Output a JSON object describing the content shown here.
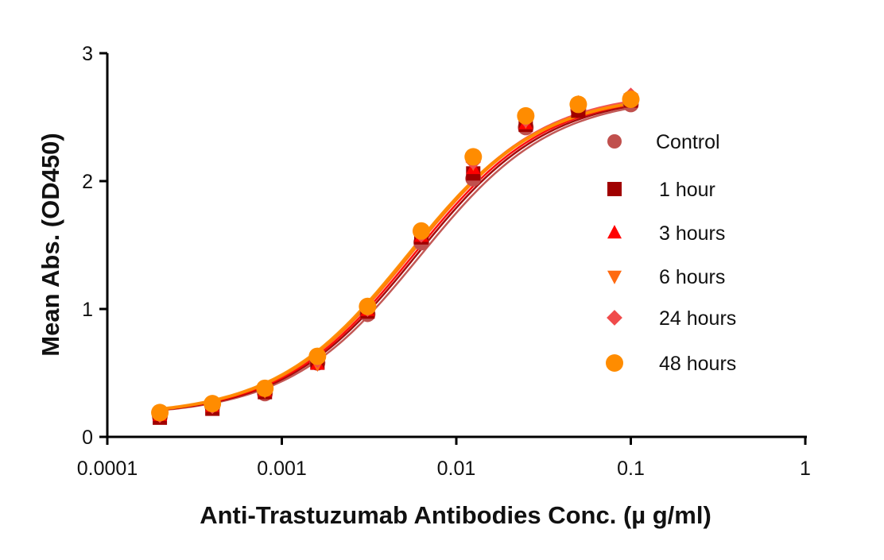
{
  "chart_data": {
    "type": "scatter",
    "title": "",
    "xlabel": "Anti-Trastuzumab Antibodies Conc. (µ g/ml)",
    "ylabel": "Mean Abs. (OD450)",
    "xscale": "log",
    "xlim": [
      0.0001,
      1
    ],
    "ylim": [
      0,
      3
    ],
    "xticks": [
      "0.0001",
      "0.001",
      "0.01",
      "0.1",
      "1"
    ],
    "yticks": [
      "0",
      "1",
      "2",
      "3"
    ],
    "grid": false,
    "legend_position": "right",
    "x": [
      0.0002,
      0.0004,
      0.0008,
      0.0016,
      0.0031,
      0.0063,
      0.0125,
      0.025,
      0.05,
      0.1
    ],
    "series": [
      {
        "name": "Control",
        "marker": "circle",
        "color": "#c0504d",
        "values": [
          0.16,
          0.24,
          0.34,
          0.58,
          0.96,
          1.52,
          2.02,
          2.42,
          2.56,
          2.6
        ]
      },
      {
        "name": "1 hour",
        "marker": "square",
        "color": "#a00000",
        "values": [
          0.15,
          0.22,
          0.35,
          0.58,
          0.98,
          1.56,
          2.06,
          2.44,
          2.55,
          2.63
        ]
      },
      {
        "name": "3 hours",
        "marker": "triangle-up",
        "color": "#ff0000",
        "values": [
          0.17,
          0.24,
          0.36,
          0.57,
          0.99,
          1.57,
          2.1,
          2.45,
          2.6,
          2.66
        ]
      },
      {
        "name": "6 hours",
        "marker": "triangle-down",
        "color": "#ff6a10",
        "values": [
          0.18,
          0.25,
          0.36,
          0.57,
          1.0,
          1.58,
          2.14,
          2.47,
          2.6,
          2.64
        ]
      },
      {
        "name": "24 hours",
        "marker": "diamond",
        "color": "#f04b4b",
        "values": [
          0.17,
          0.24,
          0.37,
          0.6,
          1.0,
          1.58,
          2.15,
          2.48,
          2.61,
          2.67
        ]
      },
      {
        "name": "48 hours",
        "marker": "circle",
        "color": "#ff8c00",
        "values": [
          0.19,
          0.26,
          0.38,
          0.63,
          1.02,
          1.61,
          2.19,
          2.51,
          2.6,
          2.64
        ]
      }
    ],
    "fit": {
      "type": "4PL",
      "bottom": 0.16,
      "top": 2.7,
      "ec50": 0.0055,
      "hill": 1.15
    }
  }
}
